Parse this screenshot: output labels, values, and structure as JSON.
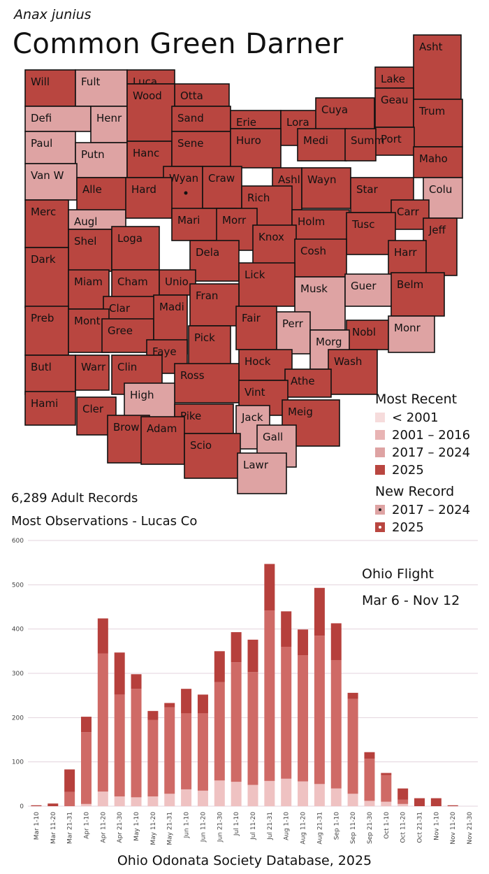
{
  "header": {
    "scientific_name": "Anax junius",
    "common_name": "Common Green Darner"
  },
  "stats": {
    "records": "6,289 Adult Records",
    "most_obs": "Most Observations - Lucas Co"
  },
  "colors": {
    "pre2001": "#f6dcdc",
    "c2001_2016": "#e8b4b4",
    "c2017_2024": "#dea3a3",
    "c2025": "#b94640",
    "bar_light": "#efc2c2",
    "bar_mid": "#cf6a66",
    "bar_dark": "#b6403c"
  },
  "legend": {
    "title": "Most Recent",
    "items": [
      {
        "label": "< 2001",
        "color": "#f6dcdc"
      },
      {
        "label": "2001 – 2016",
        "color": "#e8b4b4"
      },
      {
        "label": "2017 – 2024",
        "color": "#dea3a3"
      },
      {
        "label": "2025",
        "color": "#b94640"
      }
    ],
    "new_record_title": "New Record",
    "new_record_items": [
      {
        "label": "2017 – 2024",
        "color": "#dea3a3",
        "dot": "#222"
      },
      {
        "label": "2025",
        "color": "#b94640",
        "dot": "#fff"
      }
    ]
  },
  "map": {
    "counties": [
      {
        "name": "Will",
        "cat": 2025
      },
      {
        "name": "Fult",
        "cat": 2017
      },
      {
        "name": "Luca",
        "cat": 2025
      },
      {
        "name": "Otta",
        "cat": 2025
      },
      {
        "name": "Lake",
        "cat": 2025
      },
      {
        "name": "Asht",
        "cat": 2025
      },
      {
        "name": "Geau",
        "cat": 2025
      },
      {
        "name": "Trum",
        "cat": 2025
      },
      {
        "name": "Defi",
        "cat": 2017
      },
      {
        "name": "Henr",
        "cat": 2017
      },
      {
        "name": "Wood",
        "cat": 2025
      },
      {
        "name": "Sand",
        "cat": 2025
      },
      {
        "name": "Erie",
        "cat": 2025
      },
      {
        "name": "Lora",
        "cat": 2025
      },
      {
        "name": "Cuya",
        "cat": 2025
      },
      {
        "name": "Port",
        "cat": 2025
      },
      {
        "name": "Paul",
        "cat": 2017
      },
      {
        "name": "Putn",
        "cat": 2017
      },
      {
        "name": "Hanc",
        "cat": 2025
      },
      {
        "name": "Sene",
        "cat": 2025
      },
      {
        "name": "Huro",
        "cat": 2025
      },
      {
        "name": "Medi",
        "cat": 2025
      },
      {
        "name": "Summ",
        "cat": 2025
      },
      {
        "name": "Maho",
        "cat": 2025
      },
      {
        "name": "Van W",
        "cat": 2017
      },
      {
        "name": "Alle",
        "cat": 2025
      },
      {
        "name": "Wyan",
        "cat": 2025
      },
      {
        "name": "Craw",
        "cat": 2025
      },
      {
        "name": "Ashl",
        "cat": 2025
      },
      {
        "name": "Wayn",
        "cat": 2025
      },
      {
        "name": "Star",
        "cat": 2025
      },
      {
        "name": "Colu",
        "cat": 2017
      },
      {
        "name": "Merc",
        "cat": 2025
      },
      {
        "name": "Augl",
        "cat": 2017
      },
      {
        "name": "Hard",
        "cat": 2025
      },
      {
        "name": "Mari",
        "cat": 2025
      },
      {
        "name": "Rich",
        "cat": 2025
      },
      {
        "name": "Holm",
        "cat": 2025
      },
      {
        "name": "Carr",
        "cat": 2025
      },
      {
        "name": "Tusc",
        "cat": 2025
      },
      {
        "name": "Jeff",
        "cat": 2025
      },
      {
        "name": "Shel",
        "cat": 2025
      },
      {
        "name": "Loga",
        "cat": 2025
      },
      {
        "name": "Morr",
        "cat": 2025
      },
      {
        "name": "Knox",
        "cat": 2025
      },
      {
        "name": "Dela",
        "cat": 2025
      },
      {
        "name": "Cosh",
        "cat": 2025
      },
      {
        "name": "Harr",
        "cat": 2025
      },
      {
        "name": "Dark",
        "cat": 2025
      },
      {
        "name": "Miam",
        "cat": 2025
      },
      {
        "name": "Cham",
        "cat": 2025
      },
      {
        "name": "Unio",
        "cat": 2025
      },
      {
        "name": "Lick",
        "cat": 2025
      },
      {
        "name": "Musk",
        "cat": 2017
      },
      {
        "name": "Guer",
        "cat": 2017
      },
      {
        "name": "Belm",
        "cat": 2025
      },
      {
        "name": "Clar",
        "cat": 2025
      },
      {
        "name": "Fran",
        "cat": 2025
      },
      {
        "name": "Preb",
        "cat": 2025
      },
      {
        "name": "Mont",
        "cat": 2025
      },
      {
        "name": "Gree",
        "cat": 2025
      },
      {
        "name": "Madi",
        "cat": 2025
      },
      {
        "name": "Fair",
        "cat": 2025
      },
      {
        "name": "Perr",
        "cat": 2017
      },
      {
        "name": "Nobl",
        "cat": 2025
      },
      {
        "name": "Monr",
        "cat": 2017
      },
      {
        "name": "Faye",
        "cat": 2025
      },
      {
        "name": "Pick",
        "cat": 2025
      },
      {
        "name": "Morg",
        "cat": 2017
      },
      {
        "name": "Butl",
        "cat": 2025
      },
      {
        "name": "Warr",
        "cat": 2025
      },
      {
        "name": "Clin",
        "cat": 2025
      },
      {
        "name": "Hock",
        "cat": 2025
      },
      {
        "name": "Wash",
        "cat": 2025
      },
      {
        "name": "Athe",
        "cat": 2025
      },
      {
        "name": "Ross",
        "cat": 2025
      },
      {
        "name": "High",
        "cat": 2017
      },
      {
        "name": "Vint",
        "cat": 2025
      },
      {
        "name": "Hami",
        "cat": 2025
      },
      {
        "name": "Cler",
        "cat": 2025
      },
      {
        "name": "Pike",
        "cat": 2025
      },
      {
        "name": "Jack",
        "cat": 2017
      },
      {
        "name": "Meig",
        "cat": 2025
      },
      {
        "name": "Brow",
        "cat": 2025
      },
      {
        "name": "Adam",
        "cat": 2025
      },
      {
        "name": "Scio",
        "cat": 2025
      },
      {
        "name": "Gall",
        "cat": 2017
      },
      {
        "name": "Lawr",
        "cat": 2017
      }
    ]
  },
  "flight": {
    "title": "Ohio Flight",
    "range": "Mar 6 - Nov 12"
  },
  "chart_data": {
    "type": "bar",
    "stacked": true,
    "categories": [
      "Mar 1-10",
      "Mar 11-20",
      "Mar 21-31",
      "Apr 1-10",
      "Apr 11-20",
      "Apr 21-30",
      "May 1-10",
      "May 11-20",
      "May 21-31",
      "Jun 1-10",
      "Jun 11-20",
      "Jun 21-30",
      "Jul 1-10",
      "Jul 11-20",
      "Jul 21-31",
      "Aug 1-10",
      "Aug 11-20",
      "Aug 21-31",
      "Sep 1-10",
      "Sep 11-20",
      "Sep 21-30",
      "Oct 1-10",
      "Oct 11-20",
      "Oct 21-31",
      "Nov 1-10",
      "Nov 11-20",
      "Nov 21-30"
    ],
    "series": [
      {
        "values": [
          0,
          0,
          0,
          5,
          33,
          22,
          20,
          22,
          28,
          38,
          35,
          58,
          55,
          48,
          57,
          62,
          56,
          50,
          40,
          28,
          12,
          10,
          5,
          0,
          0,
          0,
          0
        ]
      },
      {
        "values": [
          0,
          0,
          32,
          162,
          312,
          230,
          245,
          173,
          195,
          172,
          175,
          222,
          270,
          255,
          385,
          298,
          285,
          335,
          290,
          214,
          95,
          60,
          10,
          0,
          0,
          0,
          0
        ]
      },
      {
        "values": [
          2,
          6,
          51,
          35,
          79,
          95,
          33,
          20,
          10,
          55,
          42,
          70,
          68,
          73,
          105,
          80,
          58,
          108,
          83,
          14,
          15,
          5,
          25,
          18,
          18,
          2,
          0
        ]
      }
    ],
    "ylim": [
      0,
      600
    ],
    "yticks": [
      0,
      100,
      200,
      300,
      400,
      500,
      600
    ],
    "grid": true
  },
  "footer": "Ohio Odonata Society Database, 2025"
}
